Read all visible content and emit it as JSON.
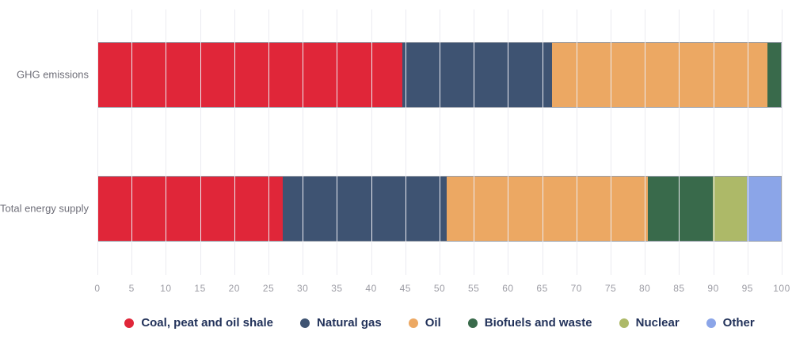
{
  "chart_data": {
    "type": "bar",
    "orientation": "horizontal",
    "stacked": true,
    "title": "",
    "xlabel": "",
    "ylabel": "",
    "grid": true,
    "legend_position": "bottom",
    "categories": [
      "GHG emissions",
      "Total energy supply"
    ],
    "series": [
      {
        "name": "Coal, peat and oil shale",
        "color": "#e02639",
        "values": [
          44.5,
          27
        ]
      },
      {
        "name": "Natural gas",
        "color": "#3e5372",
        "values": [
          22,
          24
        ]
      },
      {
        "name": "Oil",
        "color": "#eca863",
        "values": [
          31.5,
          29.5
        ]
      },
      {
        "name": "Biofuels and waste",
        "color": "#396a4b",
        "values": [
          2,
          9.5
        ]
      },
      {
        "name": "Nuclear",
        "color": "#adb968",
        "values": [
          0,
          5
        ]
      },
      {
        "name": "Other",
        "color": "#8ba5e8",
        "values": [
          0,
          5
        ]
      }
    ],
    "x_axis": {
      "min": 0,
      "max": 100,
      "tick_step": 5,
      "ticks": [
        0,
        5,
        10,
        15,
        20,
        25,
        30,
        35,
        40,
        45,
        50,
        55,
        60,
        65,
        70,
        75,
        80,
        85,
        90,
        95,
        100
      ]
    }
  }
}
